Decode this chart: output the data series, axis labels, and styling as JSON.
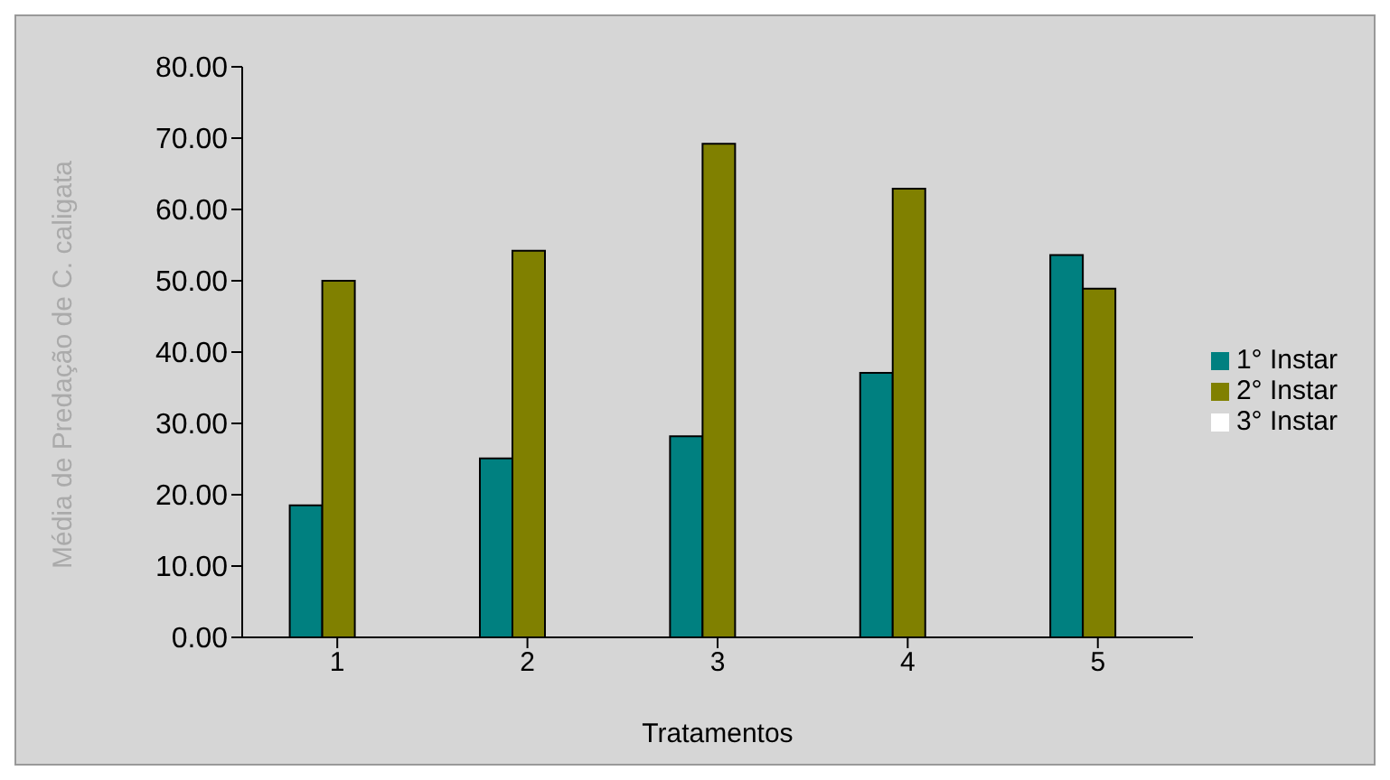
{
  "chart_data": {
    "type": "bar",
    "xlabel": "Tratamentos",
    "ylabel": "Média de Predação de C. caligata",
    "categories": [
      "1",
      "2",
      "3",
      "4",
      "5"
    ],
    "series": [
      {
        "name": "1° Instar",
        "color": "#008080",
        "values": [
          18.5,
          25.1,
          28.2,
          37.1,
          53.6
        ]
      },
      {
        "name": "2° Instar",
        "color": "#808000",
        "values": [
          50.0,
          54.2,
          69.2,
          62.9,
          48.9
        ]
      },
      {
        "name": "3° Instar",
        "color": "#ffffff",
        "values": [
          0,
          0,
          0,
          0,
          0
        ]
      }
    ],
    "ylim": [
      0,
      80
    ],
    "yticks": [
      {
        "value": 0,
        "label": "0.00"
      },
      {
        "value": 10,
        "label": "10.00"
      },
      {
        "value": 20,
        "label": "20.00"
      },
      {
        "value": 30,
        "label": "30.00"
      },
      {
        "value": 40,
        "label": "40.00"
      },
      {
        "value": 50,
        "label": "50.00"
      },
      {
        "value": 60,
        "label": "60.00"
      },
      {
        "value": 70,
        "label": "70.00"
      },
      {
        "value": 80,
        "label": "80.00"
      }
    ],
    "grid": false,
    "legend": "right"
  }
}
